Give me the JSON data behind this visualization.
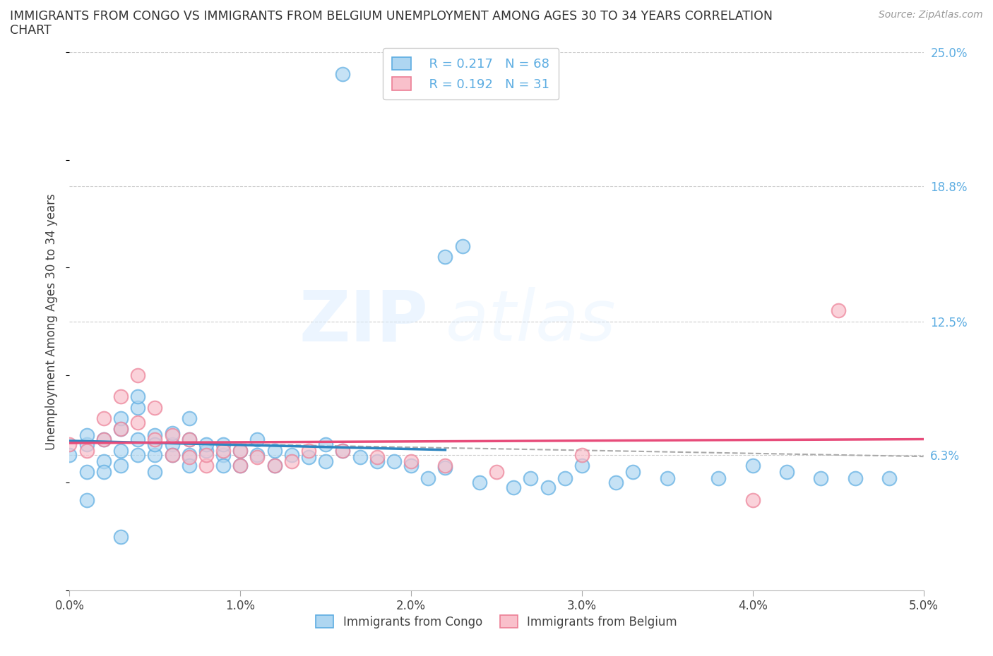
{
  "title_line1": "IMMIGRANTS FROM CONGO VS IMMIGRANTS FROM BELGIUM UNEMPLOYMENT AMONG AGES 30 TO 34 YEARS CORRELATION",
  "title_line2": "CHART",
  "source": "Source: ZipAtlas.com",
  "ylabel": "Unemployment Among Ages 30 to 34 years",
  "xlim": [
    0.0,
    0.05
  ],
  "ylim": [
    0.0,
    0.25
  ],
  "xticks": [
    0.0,
    0.01,
    0.02,
    0.03,
    0.04,
    0.05
  ],
  "xtick_labels": [
    "0.0%",
    "1.0%",
    "2.0%",
    "3.0%",
    "4.0%",
    "5.0%"
  ],
  "ytick_values": [
    0.063,
    0.125,
    0.188,
    0.25
  ],
  "ytick_labels": [
    "6.3%",
    "12.5%",
    "18.8%",
    "25.0%"
  ],
  "congo_fill": "#aed6f1",
  "congo_edge": "#5dade2",
  "belgium_fill": "#f9c0cb",
  "belgium_edge": "#ec7f96",
  "congo_trend_color": "#2e86c1",
  "belgium_trend_color": "#e74c7a",
  "dashed_trend_color": "#aaaaaa",
  "legend_R_congo": "R = 0.217",
  "legend_N_congo": "N = 68",
  "legend_R_belgium": "R = 0.192",
  "legend_N_belgium": "N = 31",
  "congo_x": [
    0.0,
    0.001,
    0.001,
    0.001,
    0.002,
    0.002,
    0.002,
    0.003,
    0.003,
    0.003,
    0.003,
    0.004,
    0.004,
    0.004,
    0.004,
    0.005,
    0.005,
    0.005,
    0.005,
    0.006,
    0.006,
    0.006,
    0.007,
    0.007,
    0.007,
    0.007,
    0.008,
    0.008,
    0.009,
    0.009,
    0.009,
    0.01,
    0.01,
    0.011,
    0.011,
    0.012,
    0.012,
    0.013,
    0.014,
    0.015,
    0.015,
    0.016,
    0.017,
    0.018,
    0.019,
    0.02,
    0.021,
    0.022,
    0.023,
    0.024,
    0.026,
    0.027,
    0.028,
    0.029,
    0.03,
    0.032,
    0.033,
    0.016,
    0.035,
    0.038,
    0.04,
    0.022,
    0.042,
    0.044,
    0.001,
    0.003,
    0.046,
    0.048
  ],
  "congo_y": [
    0.063,
    0.068,
    0.055,
    0.072,
    0.07,
    0.06,
    0.055,
    0.075,
    0.065,
    0.08,
    0.058,
    0.085,
    0.07,
    0.063,
    0.09,
    0.072,
    0.063,
    0.068,
    0.055,
    0.068,
    0.073,
    0.063,
    0.07,
    0.063,
    0.058,
    0.08,
    0.065,
    0.068,
    0.063,
    0.068,
    0.058,
    0.065,
    0.058,
    0.063,
    0.07,
    0.065,
    0.058,
    0.063,
    0.062,
    0.068,
    0.06,
    0.065,
    0.062,
    0.06,
    0.06,
    0.058,
    0.052,
    0.057,
    0.16,
    0.05,
    0.048,
    0.052,
    0.048,
    0.052,
    0.058,
    0.05,
    0.055,
    0.24,
    0.052,
    0.052,
    0.058,
    0.155,
    0.055,
    0.052,
    0.042,
    0.025,
    0.052,
    0.052
  ],
  "belgium_x": [
    0.0,
    0.001,
    0.002,
    0.002,
    0.003,
    0.003,
    0.004,
    0.004,
    0.005,
    0.005,
    0.006,
    0.006,
    0.007,
    0.007,
    0.008,
    0.008,
    0.009,
    0.01,
    0.01,
    0.011,
    0.013,
    0.014,
    0.016,
    0.018,
    0.02,
    0.022,
    0.025,
    0.03,
    0.04,
    0.045,
    0.012
  ],
  "belgium_y": [
    0.068,
    0.065,
    0.07,
    0.08,
    0.075,
    0.09,
    0.078,
    0.1,
    0.07,
    0.085,
    0.063,
    0.072,
    0.062,
    0.07,
    0.058,
    0.063,
    0.065,
    0.058,
    0.065,
    0.062,
    0.06,
    0.065,
    0.065,
    0.062,
    0.06,
    0.058,
    0.055,
    0.063,
    0.042,
    0.13,
    0.058
  ]
}
